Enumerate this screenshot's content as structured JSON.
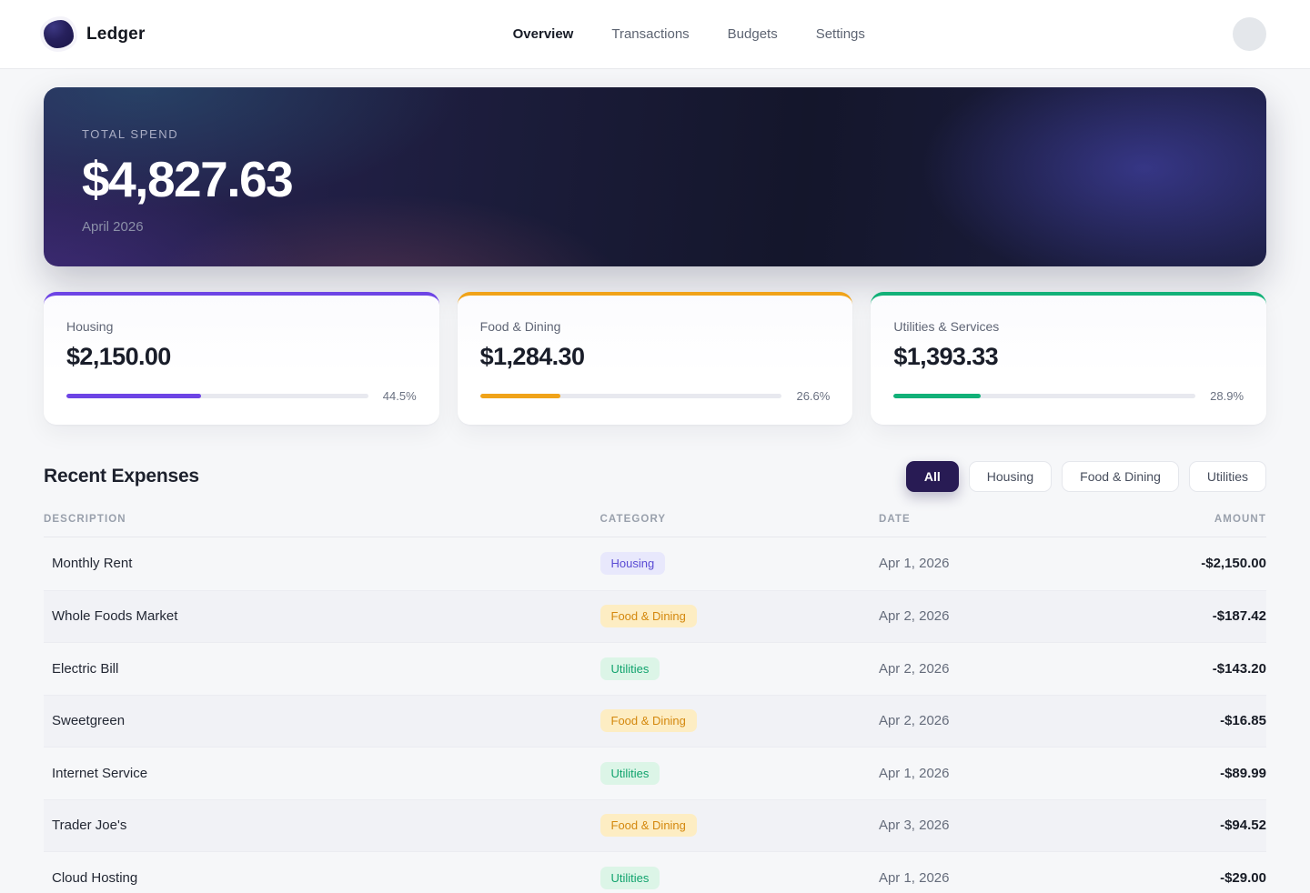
{
  "brand": {
    "name": "Ledger"
  },
  "nav": {
    "items": [
      {
        "label": "Overview",
        "active": true
      },
      {
        "label": "Transactions",
        "active": false
      },
      {
        "label": "Budgets",
        "active": false
      },
      {
        "label": "Settings",
        "active": false
      }
    ]
  },
  "hero": {
    "label": "TOTAL SPEND",
    "amount": "$4,827.63",
    "period": "April 2026"
  },
  "summary_cards": [
    {
      "label": "Housing",
      "amount": "$2,150.00",
      "percent_label": "44.5%",
      "percent_value": 44.5,
      "accent": "#6d44e5"
    },
    {
      "label": "Food & Dining",
      "amount": "$1,284.30",
      "percent_label": "26.6%",
      "percent_value": 26.6,
      "accent": "#f0a319"
    },
    {
      "label": "Utilities & Services",
      "amount": "$1,393.33",
      "percent_label": "28.9%",
      "percent_value": 28.9,
      "accent": "#12b178"
    }
  ],
  "expenses": {
    "title": "Recent Expenses",
    "filters": [
      {
        "label": "All",
        "active": true
      },
      {
        "label": "Housing",
        "active": false
      },
      {
        "label": "Food & Dining",
        "active": false
      },
      {
        "label": "Utilities",
        "active": false
      }
    ],
    "columns": [
      "DESCRIPTION",
      "CATEGORY",
      "DATE",
      "AMOUNT"
    ],
    "rows": [
      {
        "description": "Monthly Rent",
        "category": "Housing",
        "date": "Apr 1, 2026",
        "amount": "-$2,150.00"
      },
      {
        "description": "Whole Foods Market",
        "category": "Food & Dining",
        "date": "Apr 2, 2026",
        "amount": "-$187.42"
      },
      {
        "description": "Electric Bill",
        "category": "Utilities",
        "date": "Apr 2, 2026",
        "amount": "-$143.20"
      },
      {
        "description": "Sweetgreen",
        "category": "Food & Dining",
        "date": "Apr 2, 2026",
        "amount": "-$16.85"
      },
      {
        "description": "Internet Service",
        "category": "Utilities",
        "date": "Apr 1, 2026",
        "amount": "-$89.99"
      },
      {
        "description": "Trader Joe's",
        "category": "Food & Dining",
        "date": "Apr 3, 2026",
        "amount": "-$94.52"
      },
      {
        "description": "Cloud Hosting",
        "category": "Utilities",
        "date": "Apr 1, 2026",
        "amount": "-$29.00"
      }
    ]
  },
  "badge_styles": {
    "Housing": {
      "bg": "#e8e8fc",
      "fg": "#5a4bd4"
    },
    "Food & Dining": {
      "bg": "#fdedc3",
      "fg": "#d4880e"
    },
    "Utilities": {
      "bg": "#dcf5e7",
      "fg": "#11a36d"
    }
  },
  "colors": {
    "active_chip_bg": "#281b54",
    "housing_accent": "#6d44e5",
    "food_accent": "#f0a319",
    "utilities_accent": "#12b178"
  }
}
